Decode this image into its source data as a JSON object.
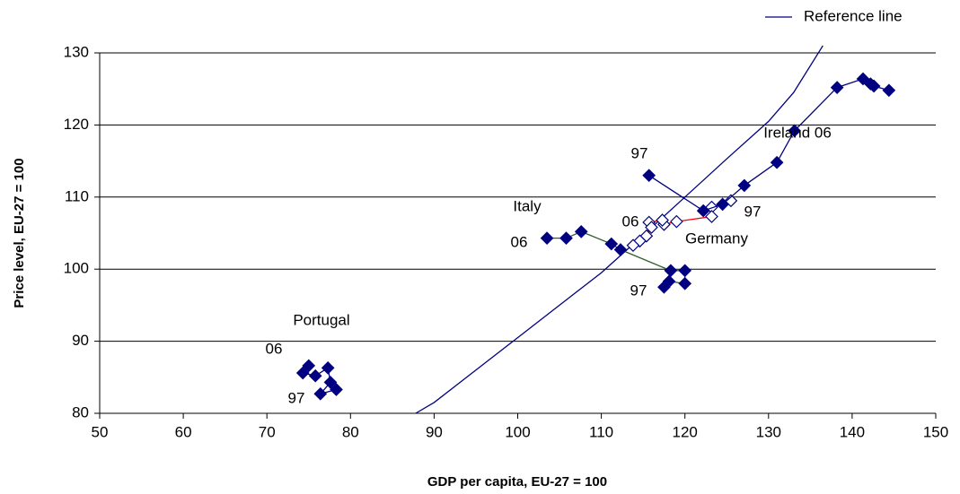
{
  "chart_data": {
    "type": "scatter-line",
    "x_label": "GDP per capita, EU-27 = 100",
    "y_label": "Price level, EU-27 = 100",
    "xlim": [
      50,
      150
    ],
    "xticks": [
      50,
      60,
      70,
      80,
      90,
      100,
      110,
      120,
      130,
      140,
      150
    ],
    "ylim": [
      80,
      130
    ],
    "yticks": [
      80,
      90,
      100,
      110,
      120,
      130
    ],
    "grid": true,
    "legend": "top-right",
    "series": [
      {
        "name": "Reference line",
        "color": "#000080",
        "marker": "none",
        "x": [
          87.8,
          90,
          95,
          100,
          105,
          110,
          115,
          120,
          125,
          130,
          133,
          136.5
        ],
        "values": [
          80,
          81.5,
          86,
          90.5,
          95,
          99.5,
          104.7,
          110,
          115.3,
          120.5,
          124.5,
          131
        ]
      },
      {
        "color": "#000080",
        "marker": "filled-diamond",
        "x": [
          78.3,
          76.4,
          77.6,
          77.3,
          75.8,
          74.3,
          75.0
        ],
        "values": [
          83.3,
          82.7,
          84.3,
          86.3,
          85.2,
          85.6,
          86.6
        ]
      },
      {
        "color": "#2f5f2f",
        "marker": "filled-diamond",
        "x": [
          117.5,
          118.1,
          120,
          120,
          118.3,
          112.3,
          111.2,
          107.6,
          105.8,
          103.5
        ],
        "values": [
          97.5,
          98.3,
          98,
          99.8,
          99.8,
          102.7,
          103.5,
          105.2,
          104.3,
          104.3
        ]
      },
      {
        "color": "#ff0000",
        "marker": "hollow-diamond",
        "x": [
          125.5,
          123.2,
          123.2,
          119,
          117.5,
          117.3,
          115.7,
          116,
          115.4,
          114.6,
          113.8
        ],
        "values": [
          109.5,
          108.6,
          107.3,
          106.6,
          106.2,
          106.8,
          106.5,
          105.8,
          104.6,
          103.9,
          103.3
        ]
      },
      {
        "color": "#000080",
        "marker": "filled-diamond",
        "x": [
          115.7,
          122.2,
          124.5,
          127.1,
          131,
          133.1,
          138.2,
          141.3,
          142.2,
          142.6,
          144.4
        ],
        "values": [
          113,
          108.1,
          109,
          111.6,
          114.8,
          119.2,
          125.2,
          126.4,
          125.7,
          125.4,
          124.8
        ]
      }
    ],
    "annotations": [
      "Portugal",
      "06",
      "97",
      "Italy",
      "06",
      "97",
      "06",
      "Germany",
      "97",
      "97",
      "Ireland 06"
    ]
  }
}
